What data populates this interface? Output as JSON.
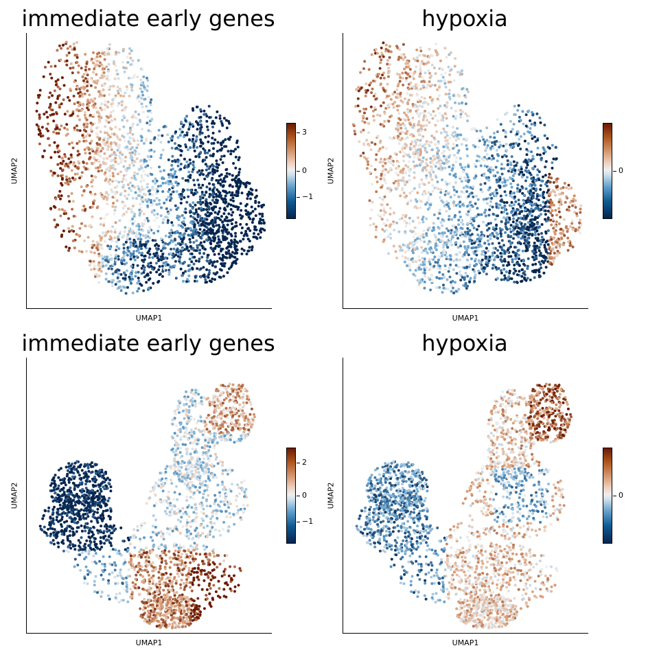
{
  "panels": [
    {
      "title": "immediate early genes",
      "xlabel": "UMAP1",
      "ylabel": "UMAP2",
      "colorbar": {
        "ticks": [
          {
            "value": 3,
            "label": "3"
          },
          {
            "value": 0,
            "label": "0"
          },
          {
            "value": -1,
            "label": "−1"
          }
        ]
      }
    },
    {
      "title": "hypoxia",
      "xlabel": "UMAP1",
      "ylabel": "UMAP2",
      "colorbar": {
        "ticks": [
          {
            "value": 0,
            "label": "0"
          }
        ]
      }
    },
    {
      "title": "immediate early genes",
      "xlabel": "UMAP1",
      "ylabel": "UMAP2",
      "colorbar": {
        "ticks": [
          {
            "value": 2,
            "label": "2"
          },
          {
            "value": 0,
            "label": "0"
          },
          {
            "value": -1,
            "label": "−1"
          }
        ]
      }
    },
    {
      "title": "hypoxia",
      "xlabel": "UMAP1",
      "ylabel": "UMAP2",
      "colorbar": {
        "ticks": [
          {
            "value": 0,
            "label": "0"
          }
        ]
      }
    }
  ],
  "colors": {
    "high": "#6a1b02",
    "mid_high": "#d79a72",
    "neutral": "#efefef",
    "mid_low": "#5f9ecb",
    "low": "#05254f"
  },
  "chart_data": [
    {
      "type": "scatter",
      "title": "immediate early genes",
      "xlabel": "UMAP1",
      "ylabel": "UMAP2",
      "colorbar_range": [
        -1.6,
        3.9
      ],
      "colorbar_ticks": [
        3,
        0,
        -1
      ],
      "grid": false,
      "regions": [
        {
          "area": "left",
          "score_level": "high"
        },
        {
          "area": "center-left",
          "score_level": "moderate"
        },
        {
          "area": "center and right",
          "score_level": "low"
        },
        {
          "area": "bottom-center",
          "score_level": "low"
        }
      ]
    },
    {
      "type": "scatter",
      "title": "hypoxia",
      "xlabel": "UMAP1",
      "ylabel": "UMAP2",
      "colorbar_ticks": [
        0
      ],
      "grid": false,
      "regions": [
        {
          "area": "upper-left",
          "score_level": "high"
        },
        {
          "area": "center",
          "score_level": "low"
        },
        {
          "area": "bottom-center",
          "score_level": "low"
        },
        {
          "area": "right edge",
          "score_level": "high"
        }
      ]
    },
    {
      "type": "scatter",
      "title": "immediate early genes",
      "xlabel": "UMAP1",
      "ylabel": "UMAP2",
      "colorbar_range": [
        -1.9,
        3.0
      ],
      "colorbar_ticks": [
        2,
        0,
        -1
      ],
      "grid": false,
      "regions": [
        {
          "area": "left cluster",
          "score_level": "low"
        },
        {
          "area": "upper-right arm",
          "score_level": "mixed"
        },
        {
          "area": "center",
          "score_level": "low to neutral"
        },
        {
          "area": "bottom-right",
          "score_level": "high"
        }
      ]
    },
    {
      "type": "scatter",
      "title": "hypoxia",
      "xlabel": "UMAP1",
      "ylabel": "UMAP2",
      "colorbar_ticks": [
        0
      ],
      "grid": false,
      "regions": [
        {
          "area": "left cluster",
          "score_level": "low"
        },
        {
          "area": "upper-right arm",
          "score_level": "high"
        },
        {
          "area": "center",
          "score_level": "low to neutral"
        },
        {
          "area": "bottom",
          "score_level": "moderate"
        }
      ]
    }
  ]
}
